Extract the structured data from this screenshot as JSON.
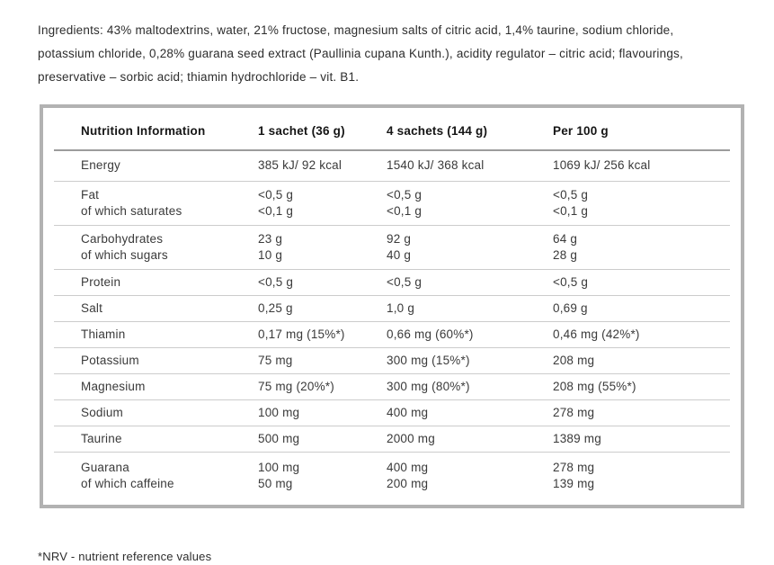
{
  "ingredients": {
    "text": "Ingredients: 43% maltodextrins, water, 21% fructose, magnesium salts of citric acid, 1,4% taurine, sodium chloride, potassium chloride, 0,28% guarana seed extract (Paullinia cupana Kunth.), acidity regulator – citric acid; flavourings, preservative – sorbic acid; thiamin hydrochloride – vit. B1."
  },
  "table": {
    "headers": [
      "Nutrition Information",
      "1 sachet (36 g)",
      "4 sachets (144 g)",
      "Per 100 g"
    ],
    "rows": [
      {
        "label": "Energy",
        "values": [
          "385 kJ/ 92 kcal",
          "1540 kJ/ 368 kcal",
          "1069 kJ/ 256 kcal"
        ]
      },
      {
        "label": "Fat",
        "sublabel": "of which saturates",
        "values": [
          "<0,5 g",
          "<0,5 g",
          "<0,5 g"
        ],
        "subvalues": [
          "<0,1 g",
          "<0,1 g",
          "<0,1 g"
        ]
      },
      {
        "label": "Carbohydrates",
        "sublabel": "of which sugars",
        "values": [
          "23 g",
          "92 g",
          "64 g"
        ],
        "subvalues": [
          "10 g",
          "40 g",
          "28 g"
        ]
      },
      {
        "label": "Protein",
        "values": [
          "<0,5 g",
          "<0,5 g",
          "<0,5 g"
        ]
      },
      {
        "label": "Salt",
        "values": [
          "0,25 g",
          "1,0 g",
          "0,69 g"
        ]
      },
      {
        "label": "Thiamin",
        "values": [
          "0,17 mg (15%*)",
          "0,66 mg (60%*)",
          "0,46 mg (42%*)"
        ]
      },
      {
        "label": "Potassium",
        "values": [
          "75 mg",
          "300 mg (15%*)",
          "208 mg"
        ]
      },
      {
        "label": "Magnesium",
        "values": [
          "75 mg (20%*)",
          "300 mg (80%*)",
          "208 mg (55%*)"
        ]
      },
      {
        "label": "Sodium",
        "values": [
          "100 mg",
          "400 mg",
          "278 mg"
        ]
      },
      {
        "label": "Taurine",
        "values": [
          "500 mg",
          "2000 mg",
          "1389 mg"
        ]
      },
      {
        "label": "Guarana",
        "sublabel": "of which caffeine",
        "values": [
          "100 mg",
          "400 mg",
          "278 mg"
        ],
        "subvalues": [
          "50 mg",
          "200 mg",
          "139 mg"
        ]
      }
    ]
  },
  "footnote": {
    "text": "*NRV - nutrient reference values"
  },
  "colors": {
    "table_border": "#b2b2b2",
    "header_divider": "#9c9c9c",
    "row_divider": "#cccccc",
    "text": "#3a3a3a",
    "header_text": "#151515"
  }
}
